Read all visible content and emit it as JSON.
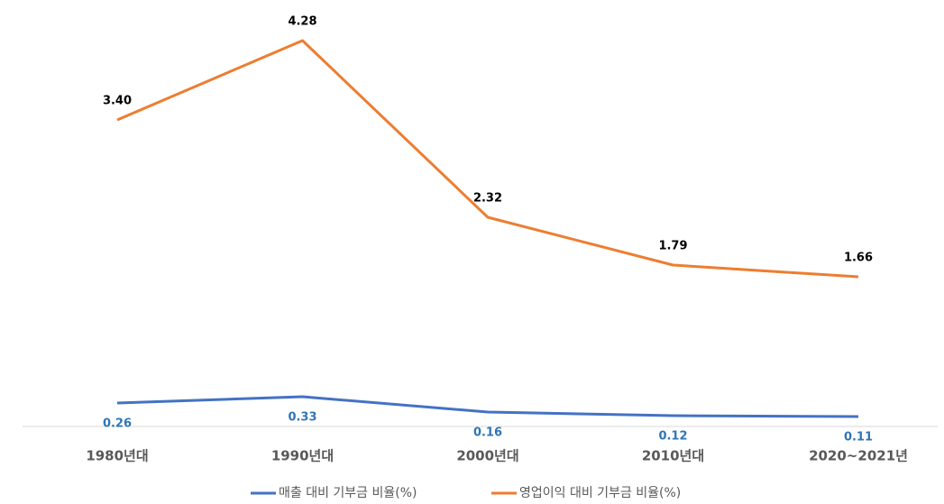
{
  "chart_data": {
    "type": "line",
    "categories": [
      "1980년대",
      "1990년대",
      "2000년대",
      "2010년대",
      "2020~2021년"
    ],
    "series": [
      {
        "name": "매출 대비 기부금 비율(%)",
        "color": "#4472c4",
        "label_color": "#2e75b6",
        "values": [
          0.26,
          0.33,
          0.16,
          0.12,
          0.11
        ],
        "value_labels": [
          "0.26",
          "0.33",
          "0.16",
          "0.12",
          "0.11"
        ]
      },
      {
        "name": "영업이익 대비 기부금 비율(%)",
        "color": "#ed7d31",
        "label_color": "#000000",
        "values": [
          3.4,
          4.28,
          2.32,
          1.79,
          1.66
        ],
        "value_labels": [
          "3.40",
          "4.28",
          "2.32",
          "1.79",
          "1.66"
        ]
      }
    ]
  }
}
